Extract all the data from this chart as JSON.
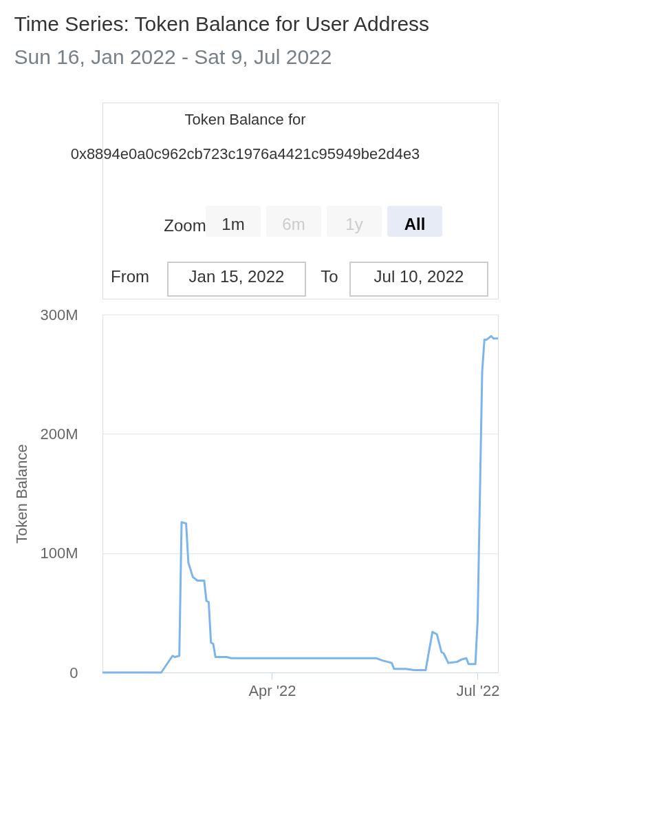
{
  "chart_data": {
    "type": "line",
    "title": "Time Series: Token Balance for User Address",
    "subtitle": "Sun 16, Jan 2022 - Sat 9, Jul 2022",
    "ylabel": "Token Balance",
    "annotations": [
      "Token Balance for",
      "0x8894e0a0c962cb723c1976a4421c95949be2d4e3",
      "Zoom",
      "1m",
      "6m",
      "1y",
      "All",
      "From",
      "Jan 15, 2022",
      "To",
      "Jul 10, 2022"
    ],
    "x": [
      "2022-01-16",
      "2022-02-11",
      "2022-02-16",
      "2022-02-17",
      "2022-02-19",
      "2022-02-20",
      "2022-02-22",
      "2022-02-23",
      "2022-02-25",
      "2022-02-27",
      "2022-03-02",
      "2022-03-03",
      "2022-03-04",
      "2022-03-05",
      "2022-03-06",
      "2022-03-07",
      "2022-03-12",
      "2022-03-14",
      "2022-04-01",
      "2022-05-17",
      "2022-05-20",
      "2022-05-24",
      "2022-05-25",
      "2022-05-30",
      "2022-06-03",
      "2022-06-08",
      "2022-06-11",
      "2022-06-13",
      "2022-06-15",
      "2022-06-16",
      "2022-06-18",
      "2022-06-22",
      "2022-06-24",
      "2022-06-26",
      "2022-06-27",
      "2022-06-30",
      "2022-07-01",
      "2022-07-03",
      "2022-07-04",
      "2022-07-05",
      "2022-07-07",
      "2022-07-08",
      "2022-07-10"
    ],
    "series": [
      {
        "color": "#7cb5ec",
        "values": [
          0,
          0,
          14000000,
          13000000,
          14000000,
          126000000,
          125000000,
          92000000,
          80000000,
          77000000,
          77000000,
          60000000,
          59000000,
          25000000,
          24000000,
          13000000,
          13000000,
          12000000,
          12000000,
          12000000,
          10000000,
          8000000,
          3000000,
          3000000,
          2000000,
          2000000,
          34000000,
          32000000,
          17000000,
          16000000,
          8000000,
          9000000,
          11000000,
          12000000,
          7000000,
          7000000,
          44000000,
          252000000,
          279000000,
          279000000,
          282000000,
          280000000,
          280000000
        ]
      }
    ],
    "xlim": [
      "2022-01-16",
      "2022-07-10"
    ],
    "xticks": [
      {
        "value": "2022-04-01",
        "label": "Apr '22"
      },
      {
        "value": "2022-07-01",
        "label": "Jul '22"
      }
    ],
    "ylim": [
      0,
      300000000
    ],
    "yticks": [
      {
        "value": 0,
        "label": "0"
      },
      {
        "value": 100000000,
        "label": "100M"
      },
      {
        "value": 200000000,
        "label": "200M"
      },
      {
        "value": 300000000,
        "label": "300M"
      }
    ],
    "grid": "y",
    "marker": "none",
    "line_style": "solid"
  }
}
